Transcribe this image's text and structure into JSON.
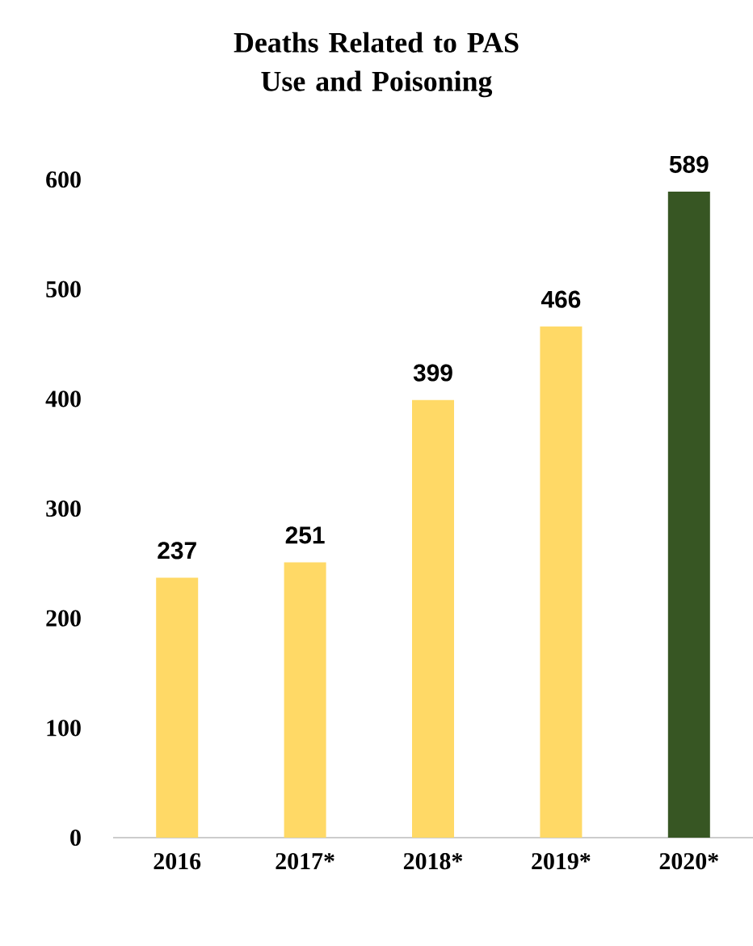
{
  "chart_data": {
    "type": "bar",
    "title": "Deaths Related to PAS Use and Poisoning",
    "categories": [
      "2016",
      "2017*",
      "2018*",
      "2019*",
      "2020*"
    ],
    "values": [
      237,
      251,
      399,
      466,
      589
    ],
    "colors": [
      "#ffd966",
      "#ffd966",
      "#ffd966",
      "#ffd966",
      "#375623"
    ],
    "ylim": [
      0,
      600
    ],
    "yticks": [
      0,
      100,
      200,
      300,
      400,
      500,
      600
    ],
    "data_labels": true
  }
}
